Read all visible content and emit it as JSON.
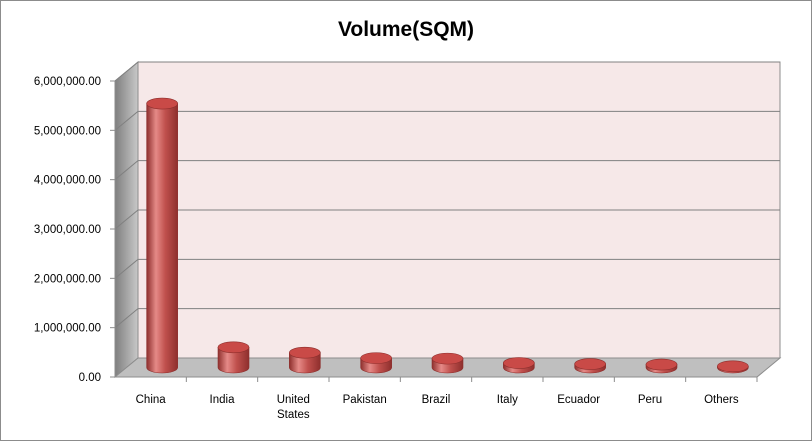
{
  "chart_data": {
    "type": "bar",
    "style": "3d-cylinder",
    "title": "Volume(SQM)",
    "xlabel": "",
    "ylabel": "",
    "categories": [
      "China",
      "India",
      "United States",
      "Pakistan",
      "Brazil",
      "Italy",
      "Ecuador",
      "Peru",
      "Others"
    ],
    "category_lines": [
      [
        "China"
      ],
      [
        "India"
      ],
      [
        "United",
        "States"
      ],
      [
        "Pakistan"
      ],
      [
        "Brazil"
      ],
      [
        "Italy"
      ],
      [
        "Ecuador"
      ],
      [
        "Peru"
      ],
      [
        "Others"
      ]
    ],
    "values": [
      5350000,
      410000,
      300000,
      190000,
      180000,
      90000,
      70000,
      60000,
      25000
    ],
    "ylim": [
      0,
      6000000
    ],
    "yticks": [
      0,
      1000000,
      2000000,
      3000000,
      4000000,
      5000000,
      6000000
    ],
    "ytick_labels": [
      "0.00",
      "1,000,000.00",
      "2,000,000.00",
      "3,000,000.00",
      "4,000,000.00",
      "5,000,000.00",
      "6,000,000.00"
    ],
    "grid": true,
    "legend": "none",
    "colors": {
      "bar": "#c0504d",
      "bar_dark": "#8e2f2d",
      "bar_light": "#e58a87",
      "bar_top": "#c94a47",
      "back_wall": "#f6e8e8",
      "side_wall": "#a6a6a6",
      "floor": "#bfbfbf",
      "gridline": "#808080"
    }
  }
}
